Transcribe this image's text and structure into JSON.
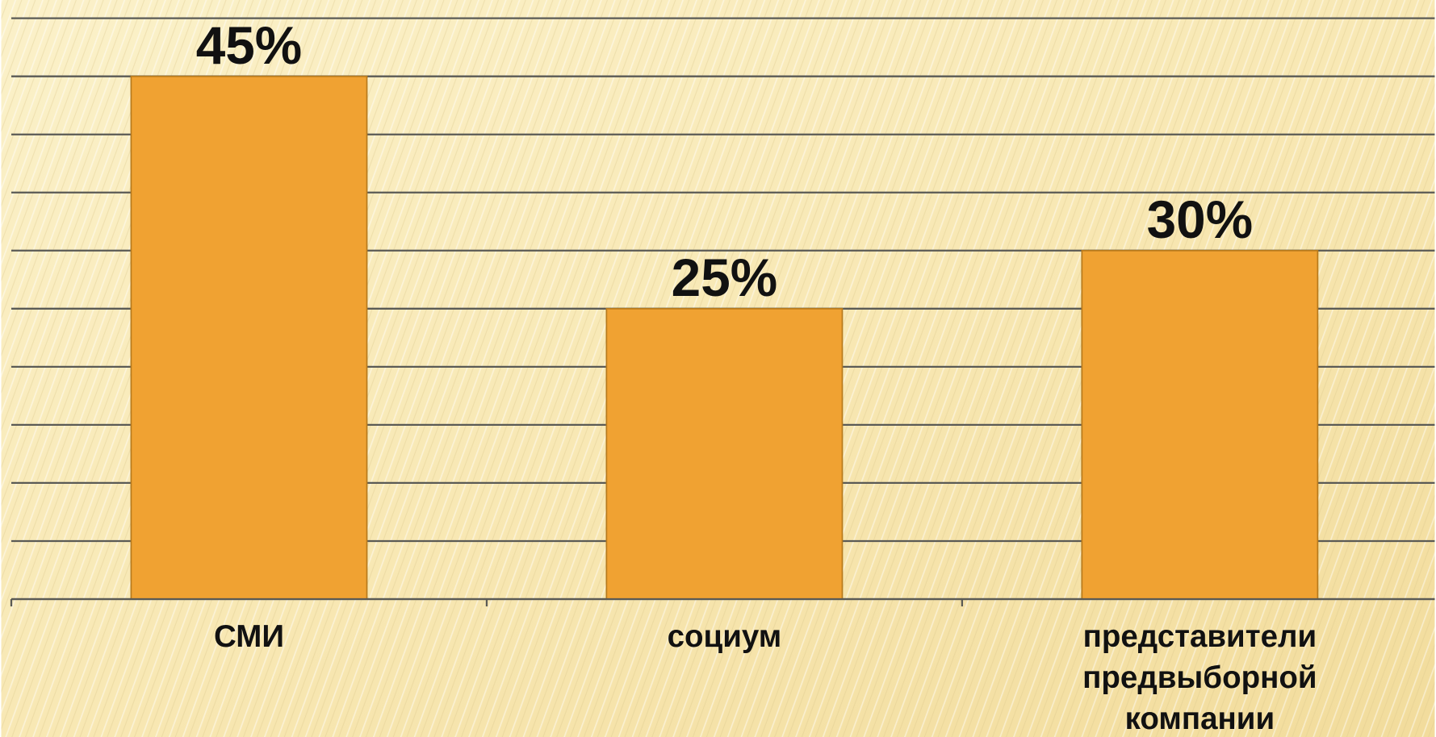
{
  "chart_data": {
    "type": "bar",
    "categories": [
      "СМИ",
      "социум",
      "представители предвыборной компании"
    ],
    "values": [
      45,
      25,
      30
    ],
    "value_labels": [
      "45%",
      "25%",
      "30%"
    ],
    "color": "#f0a232",
    "ylim": [
      0,
      50
    ],
    "yticks": [
      0,
      5,
      10,
      15,
      20,
      25,
      30,
      35,
      40,
      45,
      50
    ],
    "grid": true
  }
}
